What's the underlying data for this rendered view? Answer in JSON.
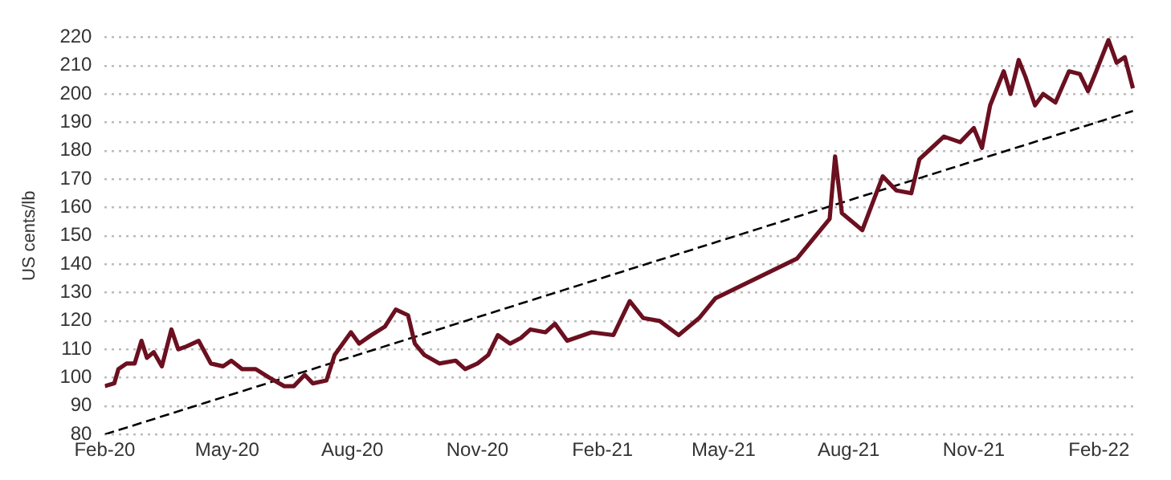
{
  "chart_data": {
    "type": "line",
    "ylabel": "US cents/lb",
    "ylim": [
      80,
      220
    ],
    "yticks": [
      80,
      90,
      100,
      110,
      120,
      130,
      140,
      150,
      160,
      170,
      180,
      190,
      200,
      210,
      220
    ],
    "xlim": [
      "2020-02-01",
      "2022-02-28"
    ],
    "xticks": [
      {
        "value": "2020-02-01",
        "label": "Feb-20"
      },
      {
        "value": "2020-05-01",
        "label": "May-20"
      },
      {
        "value": "2020-08-01",
        "label": "Aug-20"
      },
      {
        "value": "2020-11-01",
        "label": "Nov-20"
      },
      {
        "value": "2021-02-01",
        "label": "Feb-21"
      },
      {
        "value": "2021-05-01",
        "label": "May-21"
      },
      {
        "value": "2021-08-01",
        "label": "Aug-21"
      },
      {
        "value": "2021-11-01",
        "label": "Nov-21"
      },
      {
        "value": "2022-02-01",
        "label": "Feb-22"
      }
    ],
    "grid": "y",
    "legend": false,
    "marker": "none",
    "series": [
      {
        "color": "#6b1020",
        "line_style": "solid",
        "x": [
          "2020-02-01",
          "2020-02-08",
          "2020-02-11",
          "2020-02-17",
          "2020-02-23",
          "2020-02-28",
          "2020-03-03",
          "2020-03-08",
          "2020-03-14",
          "2020-03-21",
          "2020-03-26",
          "2020-04-01",
          "2020-04-10",
          "2020-04-19",
          "2020-04-28",
          "2020-05-04",
          "2020-05-12",
          "2020-05-22",
          "2020-06-01",
          "2020-06-12",
          "2020-06-19",
          "2020-06-27",
          "2020-07-03",
          "2020-07-13",
          "2020-07-19",
          "2020-07-31",
          "2020-08-06",
          "2020-08-15",
          "2020-08-25",
          "2020-09-02",
          "2020-09-11",
          "2020-09-16",
          "2020-09-23",
          "2020-10-04",
          "2020-10-16",
          "2020-10-23",
          "2020-11-01",
          "2020-11-09",
          "2020-11-16",
          "2020-11-25",
          "2020-12-03",
          "2020-12-10",
          "2020-12-21",
          "2020-12-28",
          "2021-01-06",
          "2021-01-24",
          "2021-02-09",
          "2021-02-21",
          "2021-03-03",
          "2021-03-15",
          "2021-03-29",
          "2021-04-13",
          "2021-04-25",
          "2021-06-24",
          "2021-07-18",
          "2021-07-22",
          "2021-07-27",
          "2021-08-11",
          "2021-08-26",
          "2021-09-05",
          "2021-09-16",
          "2021-09-22",
          "2021-10-01",
          "2021-10-10",
          "2021-10-22",
          "2021-11-01",
          "2021-11-07",
          "2021-11-13",
          "2021-11-23",
          "2021-11-28",
          "2021-12-04",
          "2021-12-09",
          "2021-12-16",
          "2021-12-22",
          "2021-12-31",
          "2022-01-10",
          "2022-01-18",
          "2022-01-24",
          "2022-01-30",
          "2022-02-08",
          "2022-02-14",
          "2022-02-20",
          "2022-02-26"
        ],
        "values": [
          97,
          98,
          103,
          105,
          105,
          113,
          107,
          109,
          104,
          117,
          110,
          111,
          113,
          105,
          104,
          106,
          103,
          103,
          100,
          97,
          97,
          101,
          98,
          99,
          108,
          116,
          112,
          115,
          118,
          124,
          122,
          112,
          108,
          105,
          106,
          103,
          105,
          108,
          115,
          112,
          114,
          117,
          116,
          119,
          113,
          116,
          115,
          127,
          121,
          120,
          115,
          121,
          128,
          142,
          156,
          178,
          158,
          152,
          171,
          166,
          165,
          177,
          181,
          185,
          183,
          188,
          181,
          196,
          208,
          200,
          212,
          206,
          196,
          200,
          197,
          208,
          207,
          201,
          208,
          219,
          211,
          213,
          202
        ]
      },
      {
        "color": "#000000",
        "line_style": "dashed",
        "x": [
          "2020-02-01",
          "2022-02-26"
        ],
        "values": [
          80,
          194
        ]
      }
    ]
  }
}
